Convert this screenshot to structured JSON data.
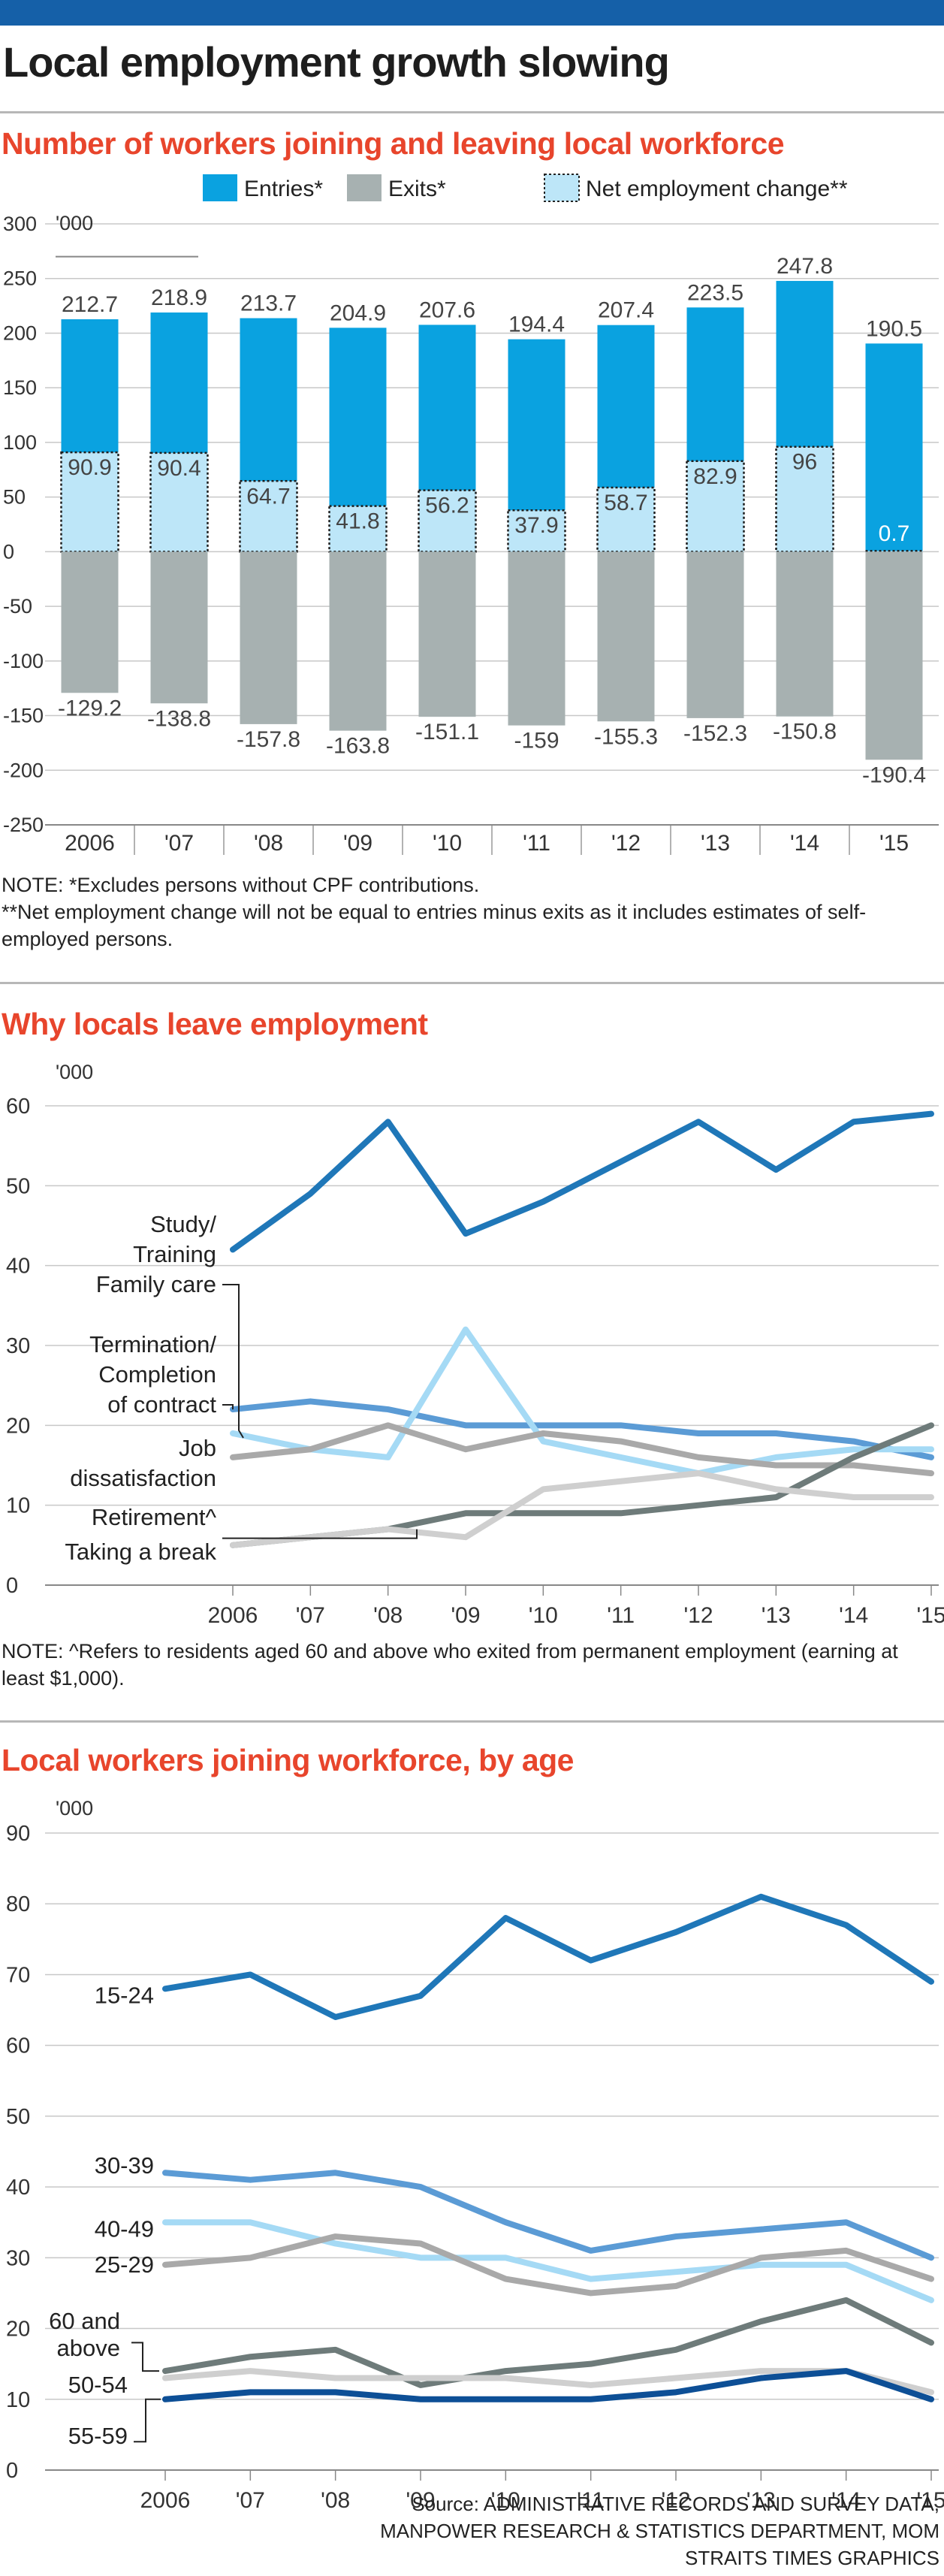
{
  "colors": {
    "brand_bar": "#1560a8",
    "title_red": "#e8452c",
    "entries": "#0aa2e0",
    "exits": "#a7b1b1",
    "net": "#bde6f8"
  },
  "title": "Local employment growth slowing",
  "chart1": {
    "heading": "Number of workers joining and leaving local workforce",
    "note": "NOTE: *Excludes persons without CPF contributions.\n**Net employment change will not be equal to entries minus exits as it includes estimates of self-employed persons."
  },
  "chart2": {
    "heading": "Why locals leave employment",
    "note": "NOTE: ^Refers to residents aged 60 and above who exited from permanent employment (earning at least $1,000)."
  },
  "chart3": {
    "heading": "Local workers joining workforce, by age"
  },
  "source": "Source: ADMINISTRATIVE RECORDS AND SURVEY DATA,\nMANPOWER RESEARCH & STATISTICS DEPARTMENT, MOM\nSTRAITS TIMES GRAPHICS",
  "chart_data": [
    {
      "type": "bar",
      "title": "Number of workers joining and leaving local workforce",
      "unit_label": "'000",
      "categories": [
        "2006",
        "'07",
        "'08",
        "'09",
        "'10",
        "'11",
        "'12",
        "'13",
        "'14",
        "'15"
      ],
      "ylim": [
        -250,
        300
      ],
      "yticks": [
        300,
        250,
        200,
        150,
        100,
        50,
        0,
        -50,
        -100,
        -150,
        -200,
        -250
      ],
      "legend_position": "top-right",
      "series": [
        {
          "name": "Entries*",
          "color": "#0aa2e0",
          "values": [
            212.7,
            218.9,
            213.7,
            204.9,
            207.6,
            194.4,
            207.4,
            223.5,
            247.8,
            190.5
          ]
        },
        {
          "name": "Exits*",
          "color": "#a7b1b1",
          "values": [
            -129.2,
            -138.8,
            -157.8,
            -163.8,
            -151.1,
            -159,
            -155.3,
            -152.3,
            -150.8,
            -190.4
          ]
        },
        {
          "name": "Net employment change**",
          "color": "#bde6f8",
          "values": [
            90.9,
            90.4,
            64.7,
            41.8,
            56.2,
            37.9,
            58.7,
            82.9,
            96,
            0.7
          ]
        }
      ]
    },
    {
      "type": "line",
      "title": "Why locals leave employment",
      "unit_label": "'000",
      "categories": [
        "2006",
        "'07",
        "'08",
        "'09",
        "'10",
        "'11",
        "'12",
        "'13",
        "'14",
        "'15"
      ],
      "ylim": [
        0,
        60
      ],
      "yticks": [
        60,
        50,
        40,
        30,
        20,
        10,
        0
      ],
      "series": [
        {
          "name": "Study/\nTraining",
          "color": "#1f77b8",
          "values": [
            42,
            49,
            58,
            44,
            48,
            53,
            58,
            52,
            58,
            59
          ]
        },
        {
          "name": "Family care",
          "color": "#5b9bd5",
          "values": [
            22,
            23,
            22,
            20,
            20,
            20,
            19,
            19,
            18,
            16
          ]
        },
        {
          "name": "Termination/\nCompletion\nof contract",
          "color": "#a5daf5",
          "values": [
            19,
            17,
            16,
            32,
            18,
            16,
            14,
            16,
            17,
            17
          ]
        },
        {
          "name": "Job\ndissatisfaction",
          "color": "#a9a9a9",
          "values": [
            16,
            17,
            20,
            17,
            19,
            18,
            16,
            15,
            15,
            14
          ]
        },
        {
          "name": "Retirement^",
          "color": "#6e7b7a",
          "values": [
            5,
            6,
            7,
            9,
            9,
            9,
            10,
            11,
            16,
            20
          ]
        },
        {
          "name": "Taking a break",
          "color": "#cfcfcf",
          "values": [
            5,
            6,
            7,
            6,
            12,
            13,
            14,
            12,
            11,
            11
          ]
        }
      ]
    },
    {
      "type": "line",
      "title": "Local workers joining workforce, by age",
      "unit_label": "'000",
      "categories": [
        "2006",
        "'07",
        "'08",
        "'09",
        "'10",
        "'11",
        "'12",
        "'13",
        "'14",
        "'15"
      ],
      "ylim": [
        0,
        90
      ],
      "yticks": [
        90,
        80,
        70,
        60,
        50,
        40,
        30,
        20,
        10,
        0
      ],
      "series": [
        {
          "name": "15-24",
          "color": "#1f77b8",
          "values": [
            68,
            70,
            64,
            67,
            78,
            72,
            76,
            81,
            77,
            69
          ]
        },
        {
          "name": "30-39",
          "color": "#5b9bd5",
          "values": [
            42,
            41,
            42,
            40,
            35,
            31,
            33,
            34,
            35,
            30
          ]
        },
        {
          "name": "40-49",
          "color": "#a5daf5",
          "values": [
            35,
            35,
            32,
            30,
            30,
            27,
            28,
            29,
            29,
            24
          ]
        },
        {
          "name": "25-29",
          "color": "#a9a9a9",
          "values": [
            29,
            30,
            33,
            32,
            27,
            25,
            26,
            30,
            31,
            27
          ]
        },
        {
          "name": "60 and\nabove",
          "color": "#6e7b7a",
          "values": [
            14,
            16,
            17,
            12,
            14,
            15,
            17,
            21,
            24,
            18
          ]
        },
        {
          "name": "50-54",
          "color": "#cfcfcf",
          "values": [
            13,
            14,
            13,
            13,
            13,
            12,
            13,
            14,
            14,
            11
          ]
        },
        {
          "name": "55-59",
          "color": "#0d4f96",
          "values": [
            10,
            11,
            11,
            10,
            10,
            10,
            11,
            13,
            14,
            10
          ]
        }
      ]
    }
  ]
}
